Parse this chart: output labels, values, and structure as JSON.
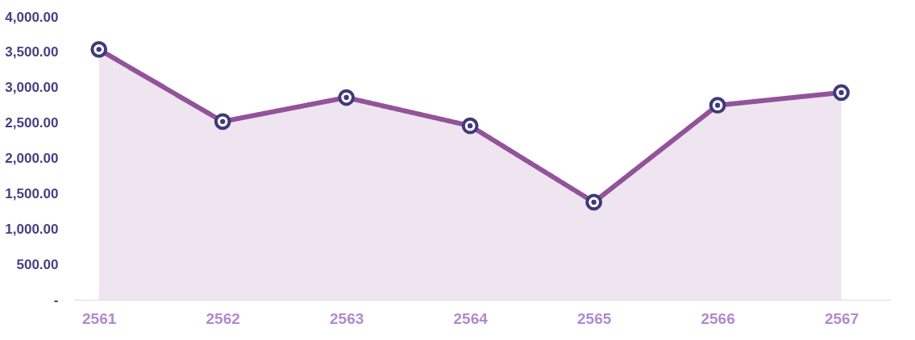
{
  "chart_data": {
    "type": "area",
    "categories": [
      "2561",
      "2562",
      "2563",
      "2564",
      "2565",
      "2566",
      "2567"
    ],
    "series": [
      {
        "color": "#93539a",
        "values": [
          3540,
          2520,
          2860,
          2460,
          1380,
          2750,
          2930
        ]
      }
    ],
    "ylim": [
      0,
      4000
    ],
    "yticks": [
      {
        "value": 0,
        "label": "-"
      },
      {
        "value": 500,
        "label": "500.00"
      },
      {
        "value": 1000,
        "label": "1,000.00"
      },
      {
        "value": 1500,
        "label": "1,500.00"
      },
      {
        "value": 2000,
        "label": "2,000.00"
      },
      {
        "value": 2500,
        "label": "2,500.00"
      },
      {
        "value": 3000,
        "label": "3,000.00"
      },
      {
        "value": 3500,
        "label": "3,500.00"
      },
      {
        "value": 4000,
        "label": "4,000.00"
      }
    ],
    "grid": false,
    "marker": "circle",
    "line_style": "solid"
  }
}
